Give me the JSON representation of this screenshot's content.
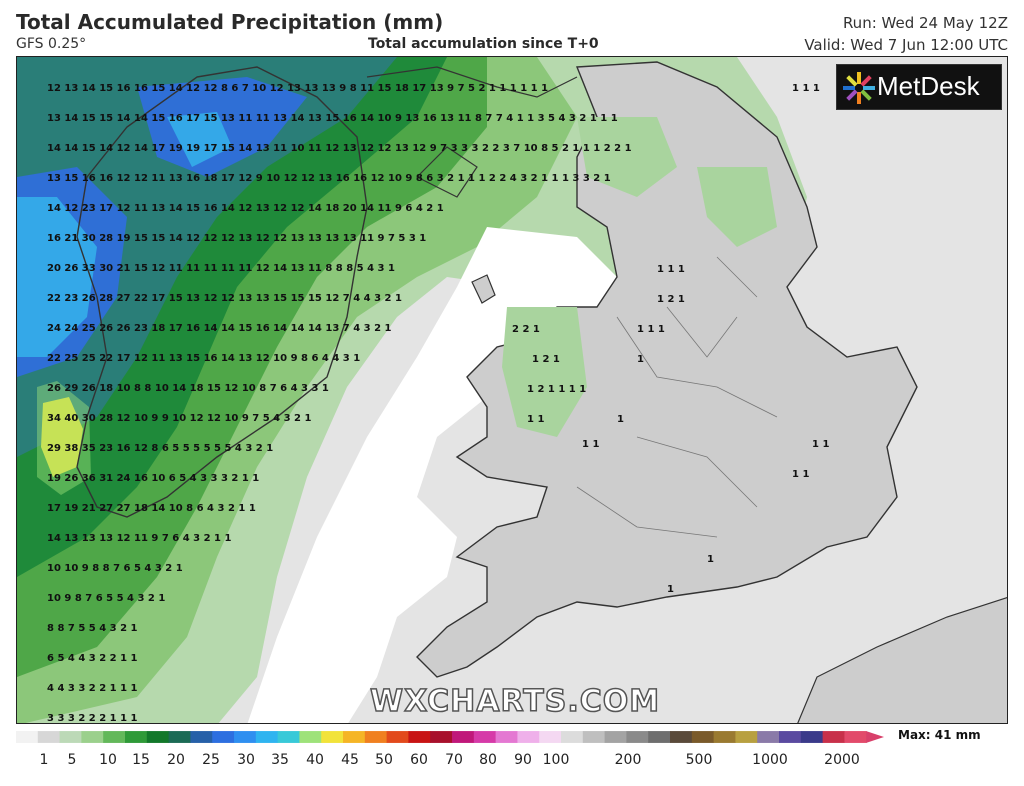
{
  "header": {
    "title": "Total Accumulated Precipitation (mm)",
    "model": "GFS 0.25°",
    "subtitle": "Total accumulation since T+0",
    "run": "Run: Wed 24 May 12Z",
    "valid": "Valid: Wed 7 Jun 12:00 UTC"
  },
  "branding": {
    "logo_text": "MetDesk",
    "watermark": "WXCHARTS.COM"
  },
  "legend": {
    "max_label": "Max: 41 mm",
    "ticks": [
      "1",
      "5",
      "10",
      "15",
      "20",
      "25",
      "30",
      "35",
      "40",
      "45",
      "50",
      "60",
      "70",
      "80",
      "90",
      "100",
      "200",
      "500",
      "1000",
      "2000"
    ],
    "colors": [
      "#f2f2f2",
      "#d7d7d7",
      "#bcd9b7",
      "#9bd08c",
      "#63b85a",
      "#2f9a38",
      "#12782a",
      "#1b6b55",
      "#2660a8",
      "#2d6fe0",
      "#2f8ff0",
      "#2fb4f0",
      "#38c9d8",
      "#9ee27a",
      "#f2e33a",
      "#f5b526",
      "#f08020",
      "#e24a1c",
      "#c81414",
      "#a8102c",
      "#c0187a",
      "#d63aa8",
      "#e478d2",
      "#efb0ea",
      "#f4d8f2",
      "#dcdcdc",
      "#bfbfbf",
      "#a3a3a3",
      "#8a8a8a",
      "#6e6e6e",
      "#5a4a3a",
      "#7a5a2a",
      "#9a7a30",
      "#b8a040",
      "#8a7aa8",
      "#5a4aa0",
      "#3a3a8a",
      "#c8304a",
      "#e24a6a"
    ]
  },
  "precip_values": [
    "12 13 14 15 16 16 15 14 12 12 8 6 7 10 12 13 13 13 9 8 11 15 18 17 13 9 7 5 2 1 1 1 1 1 1",
    "13 14 15 15 14 14 15 16 17 15 13 11 11 13 14 13 15 16 14 10 9 13 16 13 11 8 7 7 4 1 1 3 5 4 3 2 1 1 1",
    "14 14 15 14 12 14 17 19 19 17 15 14 13 11 10 11 12 13 12 12 13 12 9 7 3 3 3 2 2 3 7 10 8 5 2 1 1 1 2 2 1",
    "13 15 16 16 12 12 11 13 16 18 17 12 9 10 12 12 13 16 16 12 10 9 8 6 3 2 1 1 1 2 2 4 3 2 1 1 1 3 3 2 1",
    "14 12 23 17 12 11 13 14 15 16 14 12 13 12 12 14 18 20 14 11 9 6 4 2 1",
    "16 21 30 28 19 15 15 14 12 12 12 13 12 12 13 13 13 13 11 9 7 5 3 1",
    "20 26 33 30 21 15 12 11 11 11 11 11 12 14 13 11 8 8 8 5 4 3 1",
    "22 23 26 28 27 22 17 15 13 12 12 13 13 15 15 15 12 7 4 4 3 2 1",
    "24 24 25 26 26 23 18 17 16 14 14 15 16 14 14 14 13 7 4 3 2 1",
    "22 25 25 22 17 12 11 13 15 16 14 13 12 10 9 8 6 4 4 3 1",
    "26 29 26 18 10 8 8 10 14 18 15 12 10 8 7 6 4 3 3 1",
    "34 40 30 28 12 10 9 9 10 12 12 10 9 7 5 4 3 2 1",
    "29 38 35 23 16 12 8 6 5 5 5 5 5 5 4 3 2 1",
    "19 26 36 31 24 16 10 6 5 4 3 3 3 2 1 1",
    "17 19 21 27 27 18 14 10 8 6 4 3 2 1 1",
    "14 13 13 13 12 11 9 7 6 4 3 2 1 1",
    "10 10 9 8 8 7 6 5 4 3 2 1",
    "10 9 8 7 6 5 5 4 3 2 1",
    "8 8 7 5 5 4 3 2 1",
    "6 5 4 4 3 2 2 1 1",
    "4 4 3 3 2 2 1 1 1",
    "3 3 3 2 2 2 1 1 1"
  ],
  "inland_values": [
    "1 1 1",
    "1 1 1",
    "1 2 1",
    "2 2 1",
    "1 1 1",
    "1 2 1",
    "1",
    "1 2 1 1 1 1",
    "1 1",
    "1",
    "1 1",
    "1 1",
    "1 1",
    "1",
    "1"
  ]
}
